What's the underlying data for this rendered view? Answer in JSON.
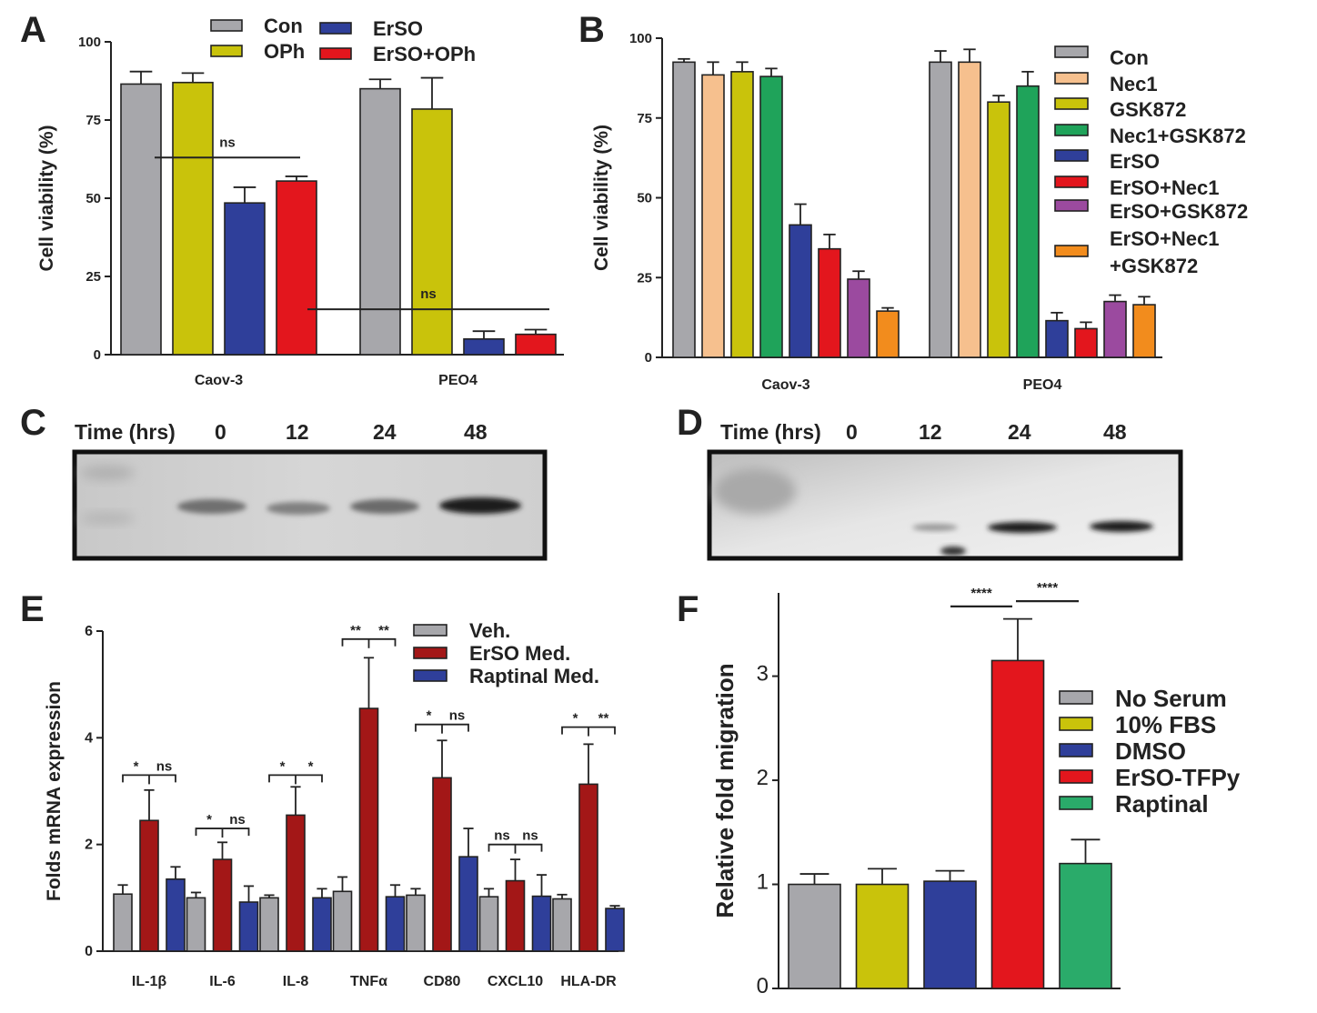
{
  "panels": {
    "A": {
      "label": "A"
    },
    "B": {
      "label": "B"
    },
    "C": {
      "label": "C",
      "time_label": "Time (hrs)",
      "times": [
        "0",
        "12",
        "24",
        "48"
      ]
    },
    "D": {
      "label": "D",
      "time_label": "Time (hrs)",
      "times": [
        "0",
        "12",
        "24",
        "48"
      ]
    },
    "E": {
      "label": "E"
    },
    "F": {
      "label": "F"
    }
  },
  "colors": {
    "gray": "#a7a7ab",
    "yellow": "#c9c30b",
    "blue": "#2f3f9a",
    "red": "#e3161d",
    "peach": "#f6c08e",
    "green": "#1fa35a",
    "purple": "#9b4a9f",
    "orange": "#f28c1d",
    "darkred": "#a31717",
    "seagreen": "#2aab6a"
  },
  "chart_data": [
    {
      "panel": "A",
      "type": "bar",
      "ylabel": "Cell viability (%)",
      "ylim": [
        0,
        100
      ],
      "yticks": [
        0,
        25,
        50,
        75,
        100
      ],
      "categories": [
        "Caov-3",
        "PEO4"
      ],
      "legend_position": "top",
      "series": [
        {
          "name": "Con",
          "color": "gray",
          "values": [
            86.5,
            85
          ],
          "errors": [
            4,
            3
          ]
        },
        {
          "name": "OPh",
          "color": "yellow",
          "values": [
            87,
            78.5
          ],
          "errors": [
            3,
            10
          ]
        },
        {
          "name": "ErSO",
          "color": "blue",
          "values": [
            48.5,
            5
          ],
          "errors": [
            5,
            2.5
          ]
        },
        {
          "name": "ErSO+OPh",
          "color": "red",
          "values": [
            55.5,
            6.5
          ],
          "errors": [
            1.5,
            1.5
          ]
        }
      ],
      "annotations": [
        {
          "text": "ns",
          "category": 0,
          "from_series": 2,
          "to_series": 3
        },
        {
          "text": "ns",
          "category": 1,
          "from_series": 2,
          "to_series": 3
        }
      ]
    },
    {
      "panel": "B",
      "type": "bar",
      "ylabel": "Cell viability (%)",
      "ylim": [
        0,
        100
      ],
      "yticks": [
        0,
        25,
        50,
        75,
        100
      ],
      "categories": [
        "Caov-3",
        "PEO4"
      ],
      "legend_position": "right",
      "series": [
        {
          "name": "Con",
          "color": "gray",
          "values": [
            92.5,
            92.5
          ],
          "errors": [
            1,
            3.5
          ]
        },
        {
          "name": "Nec1",
          "color": "peach",
          "values": [
            88.5,
            92.5
          ],
          "errors": [
            4,
            4
          ]
        },
        {
          "name": "GSK872",
          "color": "yellow",
          "values": [
            89.5,
            80
          ],
          "errors": [
            3,
            2
          ]
        },
        {
          "name": "Nec1+GSK872",
          "color": "green",
          "values": [
            88,
            85
          ],
          "errors": [
            2.5,
            4.5
          ]
        },
        {
          "name": "ErSO",
          "color": "blue",
          "values": [
            41.5,
            11.5
          ],
          "errors": [
            6.5,
            2.5
          ]
        },
        {
          "name": "ErSO+Nec1",
          "color": "red",
          "values": [
            34,
            9
          ],
          "errors": [
            4.5,
            2
          ]
        },
        {
          "name": "ErSO+GSK872",
          "color": "purple",
          "values": [
            24.5,
            17.5
          ],
          "errors": [
            2.5,
            2
          ]
        },
        {
          "name": "ErSO+Nec1\n+GSK872",
          "color": "orange",
          "values": [
            14.5,
            16.5
          ],
          "errors": [
            1,
            2.5
          ]
        }
      ]
    },
    {
      "panel": "E",
      "type": "bar",
      "ylabel": "Folds mRNA expression",
      "ylim": [
        0,
        6
      ],
      "yticks": [
        0,
        2,
        4,
        6
      ],
      "categories": [
        "IL-1β",
        "IL-6",
        "IL-8",
        "TNFα",
        "CD80",
        "CXCL10",
        "HLA-DR"
      ],
      "legend_position": "top-right",
      "series": [
        {
          "name": "Veh.",
          "color": "gray",
          "values": [
            1.07,
            1.0,
            1.0,
            1.12,
            1.05,
            1.02,
            0.98
          ],
          "errors": [
            0.17,
            0.1,
            0.05,
            0.27,
            0.12,
            0.15,
            0.08
          ]
        },
        {
          "name": "ErSO Med.",
          "color": "darkred",
          "values": [
            2.45,
            1.72,
            2.55,
            4.55,
            3.25,
            1.32,
            3.13
          ],
          "errors": [
            0.57,
            0.32,
            0.53,
            0.95,
            0.7,
            0.4,
            0.75
          ]
        },
        {
          "name": "Raptinal Med.",
          "color": "blue",
          "values": [
            1.35,
            0.92,
            1.0,
            1.02,
            1.77,
            1.03,
            0.8
          ],
          "errors": [
            0.23,
            0.3,
            0.17,
            0.22,
            0.53,
            0.4,
            0.05
          ]
        }
      ],
      "annotations": [
        {
          "category": 0,
          "left": "*",
          "right": "ns",
          "level": 3.3
        },
        {
          "category": 1,
          "left": "*",
          "right": "ns",
          "level": 2.3
        },
        {
          "category": 2,
          "left": "*",
          "right": "*",
          "level": 3.3
        },
        {
          "category": 3,
          "left": "**",
          "right": "**",
          "level": 5.85
        },
        {
          "category": 4,
          "left": "*",
          "right": "ns",
          "level": 4.25
        },
        {
          "category": 5,
          "left": "ns",
          "right": "ns",
          "level": 2.0
        },
        {
          "category": 6,
          "left": "*",
          "right": "**",
          "level": 4.2
        }
      ]
    },
    {
      "panel": "F",
      "type": "bar",
      "ylabel": "Relative fold migration",
      "ylim": [
        0,
        3.8
      ],
      "yticks": [
        0,
        1,
        2,
        3
      ],
      "legend_position": "right",
      "series": [
        {
          "name": "No Serum",
          "color": "gray",
          "value": 1.0,
          "error": 0.1
        },
        {
          "name": "10% FBS",
          "color": "yellow",
          "value": 1.0,
          "error": 0.15
        },
        {
          "name": "DMSO",
          "color": "blue",
          "value": 1.03,
          "error": 0.1
        },
        {
          "name": "ErSO-TFPy",
          "color": "red",
          "value": 3.15,
          "error": 0.4
        },
        {
          "name": "Raptinal",
          "color": "seagreen",
          "value": 1.2,
          "error": 0.23
        }
      ],
      "annotations": [
        {
          "text": "****",
          "from_bar": 2,
          "to_bar": 3
        },
        {
          "text": "****",
          "from_bar": 3,
          "to_bar": 4
        }
      ]
    }
  ]
}
